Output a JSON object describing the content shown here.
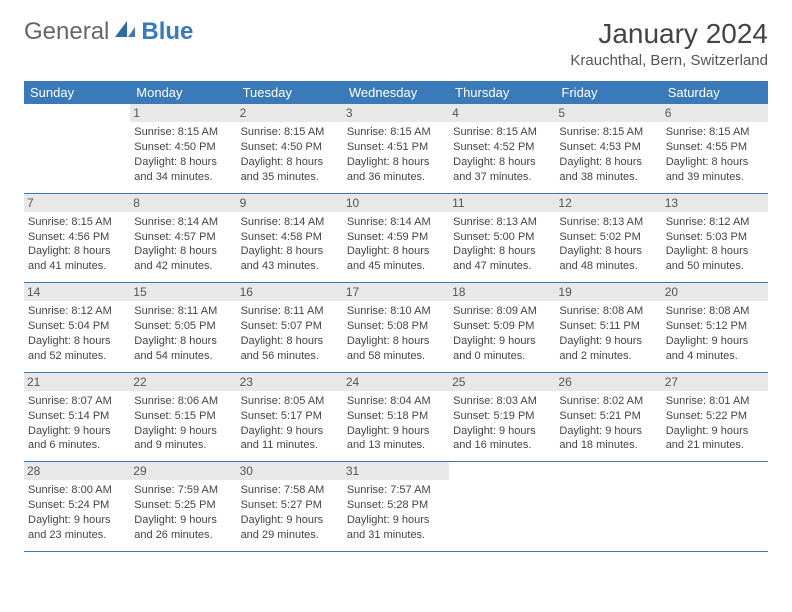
{
  "brand": {
    "part1": "General",
    "part2": "Blue"
  },
  "title": "January 2024",
  "location": "Krauchthal, Bern, Switzerland",
  "colors": {
    "header_bg": "#3a7ab8",
    "header_text": "#ffffff",
    "daynum_bg": "#e8e8e8",
    "border": "#3a7ab8",
    "body_text": "#444444"
  },
  "weekdays": [
    "Sunday",
    "Monday",
    "Tuesday",
    "Wednesday",
    "Thursday",
    "Friday",
    "Saturday"
  ],
  "grid_rows": 5,
  "grid_cols": 7,
  "start_offset": 1,
  "days": [
    {
      "n": 1,
      "sunrise": "8:15 AM",
      "sunset": "4:50 PM",
      "daylight": "8 hours and 34 minutes."
    },
    {
      "n": 2,
      "sunrise": "8:15 AM",
      "sunset": "4:50 PM",
      "daylight": "8 hours and 35 minutes."
    },
    {
      "n": 3,
      "sunrise": "8:15 AM",
      "sunset": "4:51 PM",
      "daylight": "8 hours and 36 minutes."
    },
    {
      "n": 4,
      "sunrise": "8:15 AM",
      "sunset": "4:52 PM",
      "daylight": "8 hours and 37 minutes."
    },
    {
      "n": 5,
      "sunrise": "8:15 AM",
      "sunset": "4:53 PM",
      "daylight": "8 hours and 38 minutes."
    },
    {
      "n": 6,
      "sunrise": "8:15 AM",
      "sunset": "4:55 PM",
      "daylight": "8 hours and 39 minutes."
    },
    {
      "n": 7,
      "sunrise": "8:15 AM",
      "sunset": "4:56 PM",
      "daylight": "8 hours and 41 minutes."
    },
    {
      "n": 8,
      "sunrise": "8:14 AM",
      "sunset": "4:57 PM",
      "daylight": "8 hours and 42 minutes."
    },
    {
      "n": 9,
      "sunrise": "8:14 AM",
      "sunset": "4:58 PM",
      "daylight": "8 hours and 43 minutes."
    },
    {
      "n": 10,
      "sunrise": "8:14 AM",
      "sunset": "4:59 PM",
      "daylight": "8 hours and 45 minutes."
    },
    {
      "n": 11,
      "sunrise": "8:13 AM",
      "sunset": "5:00 PM",
      "daylight": "8 hours and 47 minutes."
    },
    {
      "n": 12,
      "sunrise": "8:13 AM",
      "sunset": "5:02 PM",
      "daylight": "8 hours and 48 minutes."
    },
    {
      "n": 13,
      "sunrise": "8:12 AM",
      "sunset": "5:03 PM",
      "daylight": "8 hours and 50 minutes."
    },
    {
      "n": 14,
      "sunrise": "8:12 AM",
      "sunset": "5:04 PM",
      "daylight": "8 hours and 52 minutes."
    },
    {
      "n": 15,
      "sunrise": "8:11 AM",
      "sunset": "5:05 PM",
      "daylight": "8 hours and 54 minutes."
    },
    {
      "n": 16,
      "sunrise": "8:11 AM",
      "sunset": "5:07 PM",
      "daylight": "8 hours and 56 minutes."
    },
    {
      "n": 17,
      "sunrise": "8:10 AM",
      "sunset": "5:08 PM",
      "daylight": "8 hours and 58 minutes."
    },
    {
      "n": 18,
      "sunrise": "8:09 AM",
      "sunset": "5:09 PM",
      "daylight": "9 hours and 0 minutes."
    },
    {
      "n": 19,
      "sunrise": "8:08 AM",
      "sunset": "5:11 PM",
      "daylight": "9 hours and 2 minutes."
    },
    {
      "n": 20,
      "sunrise": "8:08 AM",
      "sunset": "5:12 PM",
      "daylight": "9 hours and 4 minutes."
    },
    {
      "n": 21,
      "sunrise": "8:07 AM",
      "sunset": "5:14 PM",
      "daylight": "9 hours and 6 minutes."
    },
    {
      "n": 22,
      "sunrise": "8:06 AM",
      "sunset": "5:15 PM",
      "daylight": "9 hours and 9 minutes."
    },
    {
      "n": 23,
      "sunrise": "8:05 AM",
      "sunset": "5:17 PM",
      "daylight": "9 hours and 11 minutes."
    },
    {
      "n": 24,
      "sunrise": "8:04 AM",
      "sunset": "5:18 PM",
      "daylight": "9 hours and 13 minutes."
    },
    {
      "n": 25,
      "sunrise": "8:03 AM",
      "sunset": "5:19 PM",
      "daylight": "9 hours and 16 minutes."
    },
    {
      "n": 26,
      "sunrise": "8:02 AM",
      "sunset": "5:21 PM",
      "daylight": "9 hours and 18 minutes."
    },
    {
      "n": 27,
      "sunrise": "8:01 AM",
      "sunset": "5:22 PM",
      "daylight": "9 hours and 21 minutes."
    },
    {
      "n": 28,
      "sunrise": "8:00 AM",
      "sunset": "5:24 PM",
      "daylight": "9 hours and 23 minutes."
    },
    {
      "n": 29,
      "sunrise": "7:59 AM",
      "sunset": "5:25 PM",
      "daylight": "9 hours and 26 minutes."
    },
    {
      "n": 30,
      "sunrise": "7:58 AM",
      "sunset": "5:27 PM",
      "daylight": "9 hours and 29 minutes."
    },
    {
      "n": 31,
      "sunrise": "7:57 AM",
      "sunset": "5:28 PM",
      "daylight": "9 hours and 31 minutes."
    }
  ],
  "labels": {
    "sunrise_prefix": "Sunrise: ",
    "sunset_prefix": "Sunset: ",
    "daylight_prefix": "Daylight: "
  }
}
